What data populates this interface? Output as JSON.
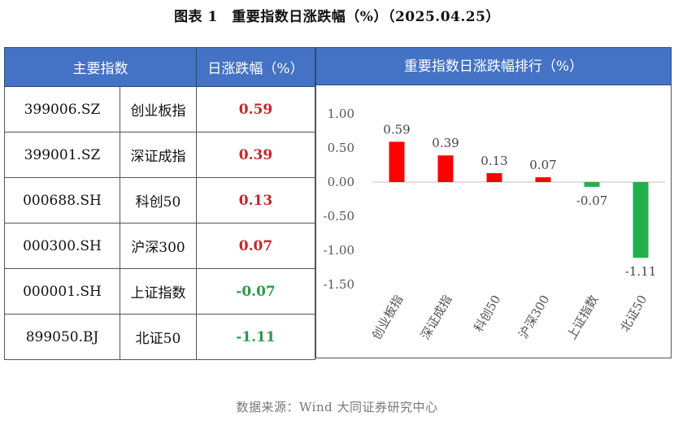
{
  "title": "图表 1　重要指数日涨跌幅（%）（2025.04.25）",
  "table": {
    "header_index": "主要指数",
    "header_change": "日涨跌幅（%）",
    "rows": [
      {
        "code": "399006.SZ",
        "name": "创业板指",
        "change": "0.59"
      },
      {
        "code": "399001.SZ",
        "name": "深证成指",
        "change": "0.39"
      },
      {
        "code": "000688.SH",
        "name": "科创50",
        "change": "0.13"
      },
      {
        "code": "000300.SH",
        "name": "沪深300",
        "change": "0.07"
      },
      {
        "code": "000001.SH",
        "name": "上证指数",
        "change": "-0.07"
      },
      {
        "code": "899050.BJ",
        "name": "北证50",
        "change": "-1.11"
      }
    ]
  },
  "chart_header": "重要指数日涨跌幅排行（%）",
  "chart_data": {
    "type": "bar",
    "categories": [
      "创业板指",
      "深证成指",
      "科创50",
      "沪深300",
      "上证指数",
      "北证50"
    ],
    "values": [
      0.59,
      0.39,
      0.13,
      0.07,
      -0.07,
      -1.11
    ],
    "data_labels": [
      "0.59",
      "0.39",
      "0.13",
      "0.07",
      "-0.07",
      "-1.11"
    ],
    "y_ticks": [
      "1.00",
      "0.50",
      "0.00",
      "-0.50",
      "-1.00",
      "-1.50"
    ],
    "y_tick_values": [
      1.0,
      0.5,
      0.0,
      -0.5,
      -1.0,
      -1.5
    ],
    "ylim": [
      -1.5,
      1.0
    ],
    "grid": false,
    "colors": {
      "positive": "#ff0000",
      "negative": "#21b04b"
    }
  },
  "source": "数据来源：Wind 大同证券研究中心"
}
